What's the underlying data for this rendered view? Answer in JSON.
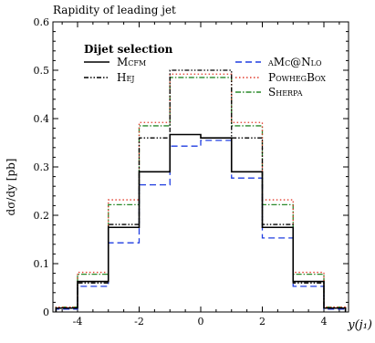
{
  "chart_data": {
    "type": "line",
    "title": "Rapidity of leading jet",
    "xlabel": "y(j₁)",
    "ylabel": "dσ/dy [pb]",
    "xlim": [
      -4.8,
      4.8
    ],
    "ylim": [
      0,
      0.6
    ],
    "x_ticks": [
      "-4",
      "-2",
      "0",
      "2",
      "4"
    ],
    "y_ticks": [
      "0",
      "0.1",
      "0.2",
      "0.3",
      "0.4",
      "0.5",
      "0.6"
    ],
    "bin_edges": [
      -4.7,
      -4.0,
      -3.0,
      -2.0,
      -1.0,
      0.0,
      1.0,
      2.0,
      3.0,
      4.0,
      4.7
    ],
    "legend_header": "Dijet selection",
    "series": [
      {
        "name": "Mcfm",
        "color": "#000000",
        "dash": "solid",
        "values": [
          0.008,
          0.063,
          0.175,
          0.29,
          0.367,
          0.36,
          0.29,
          0.175,
          0.063,
          0.008
        ]
      },
      {
        "name": "Hej",
        "color": "#000000",
        "dash": "dashdotdot",
        "values": [
          0.008,
          0.06,
          0.181,
          0.36,
          0.5,
          0.5,
          0.36,
          0.181,
          0.06,
          0.008
        ]
      },
      {
        "name": "aMc@Nlo",
        "color": "#1f3de0",
        "dash": "dashed",
        "values": [
          0.006,
          0.053,
          0.143,
          0.263,
          0.343,
          0.355,
          0.277,
          0.153,
          0.053,
          0.006
        ]
      },
      {
        "name": "PowhegBox",
        "color": "#e03a2a",
        "dash": "dotted",
        "values": [
          0.01,
          0.082,
          0.232,
          0.392,
          0.492,
          0.492,
          0.392,
          0.232,
          0.082,
          0.01
        ]
      },
      {
        "name": "Sherpa",
        "color": "#2a8a2a",
        "dash": "dashdot",
        "values": [
          0.01,
          0.078,
          0.222,
          0.385,
          0.485,
          0.485,
          0.385,
          0.222,
          0.078,
          0.01
        ]
      }
    ],
    "grid": false,
    "legend_placement": "top"
  }
}
